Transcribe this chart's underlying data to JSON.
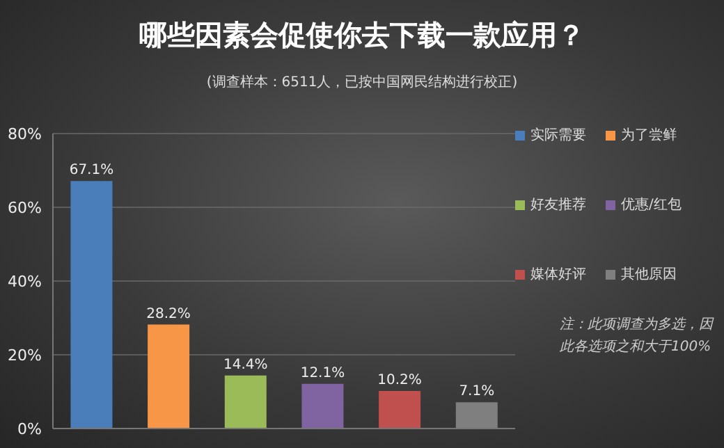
{
  "chart_data": {
    "type": "bar",
    "title": "哪些因素会促使你去下载一款应用？",
    "subtitle": "(调查样本：6511人，已按中国网民结构进行校正)",
    "categories": [
      null,
      null,
      null,
      null,
      null,
      null
    ],
    "stacked": true,
    "series": [
      {
        "name": "实际需要",
        "color": "#4a7ebb",
        "values": [
          67.1,
          null,
          null,
          null,
          null,
          null
        ],
        "value_labels": [
          "67.1%",
          null,
          null,
          null,
          null,
          null
        ]
      },
      {
        "name": "为了尝鲜",
        "color": "#f79646",
        "values": [
          null,
          28.2,
          null,
          null,
          null,
          null
        ],
        "value_labels": [
          null,
          "28.2%",
          null,
          null,
          null,
          null
        ]
      },
      {
        "name": "好友推荐",
        "color": "#9bbb59",
        "values": [
          null,
          null,
          14.4,
          null,
          null,
          null
        ],
        "value_labels": [
          null,
          null,
          "14.4%",
          null,
          null,
          null
        ]
      },
      {
        "name": "优惠/红包",
        "color": "#8064a2",
        "values": [
          null,
          null,
          null,
          12.1,
          null,
          null
        ],
        "value_labels": [
          null,
          null,
          null,
          "12.1%",
          null,
          null
        ]
      },
      {
        "name": "媒体好评",
        "color": "#c0504d",
        "values": [
          null,
          null,
          null,
          null,
          10.2,
          null
        ],
        "value_labels": [
          null,
          null,
          null,
          null,
          "10.2%",
          null
        ]
      },
      {
        "name": "其他原因",
        "color": "#7f7f7f",
        "values": [
          null,
          null,
          null,
          null,
          null,
          7.1
        ],
        "value_labels": [
          null,
          null,
          null,
          null,
          null,
          "7.1%"
        ]
      }
    ],
    "ylim": [
      0,
      80
    ],
    "yticks": [
      {
        "value": 0,
        "label": "0%"
      },
      {
        "value": 20,
        "label": "20%"
      },
      {
        "value": 40,
        "label": "40%"
      },
      {
        "value": 60,
        "label": "60%"
      },
      {
        "value": 80,
        "label": "80%"
      }
    ],
    "grid": "y",
    "legend": "right",
    "annotations": [
      "注：此项调查为多选，因此各选项之和大于100%"
    ]
  }
}
